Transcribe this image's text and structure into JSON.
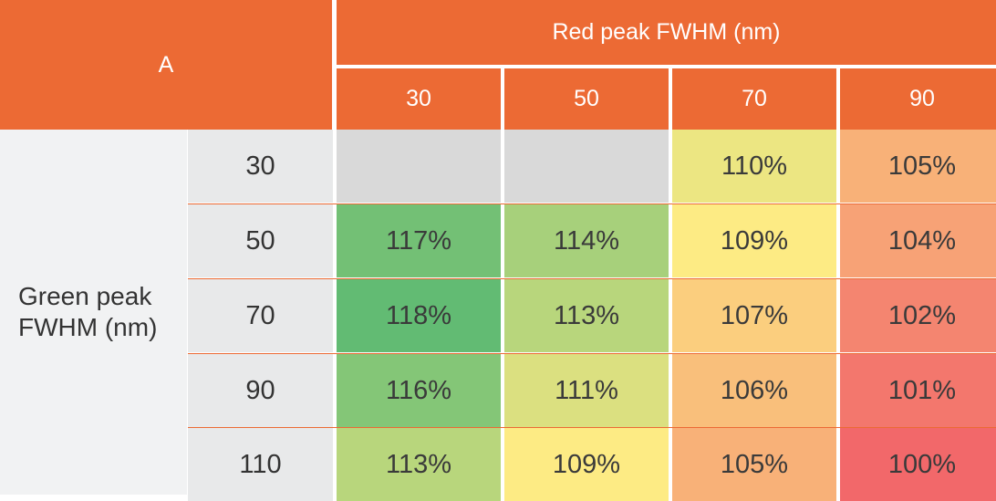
{
  "corner_label": "A",
  "column_group_label": "Red peak FWHM (nm)",
  "row_group_label": "Green peak FWHM (nm)",
  "colors": {
    "header": "#EC6A34",
    "row_header": "#E8E9EA",
    "row_group": "#F1F2F3",
    "na": "#D9D9D9"
  },
  "chart_data": {
    "type": "heatmap",
    "title": "",
    "xlabel": "Red peak FWHM (nm)",
    "ylabel": "Green peak FWHM (nm)",
    "x": [
      "30",
      "50",
      "70",
      "90"
    ],
    "y": [
      "30",
      "50",
      "70",
      "90",
      "110"
    ],
    "values": [
      [
        null,
        null,
        110,
        105
      ],
      [
        117,
        114,
        109,
        104
      ],
      [
        118,
        113,
        107,
        102
      ],
      [
        116,
        111,
        106,
        101
      ],
      [
        113,
        109,
        105,
        100
      ]
    ],
    "labels": [
      [
        "",
        "",
        "110%",
        "105%"
      ],
      [
        "117%",
        "114%",
        "109%",
        "104%"
      ],
      [
        "118%",
        "113%",
        "107%",
        "102%"
      ],
      [
        "116%",
        "111%",
        "106%",
        "101%"
      ],
      [
        "113%",
        "109%",
        "105%",
        "100%"
      ]
    ],
    "unit": "%",
    "color_scale": [
      "#F2686A",
      "#FDEB84",
      "#62BB73"
    ],
    "range": [
      100,
      118
    ]
  }
}
